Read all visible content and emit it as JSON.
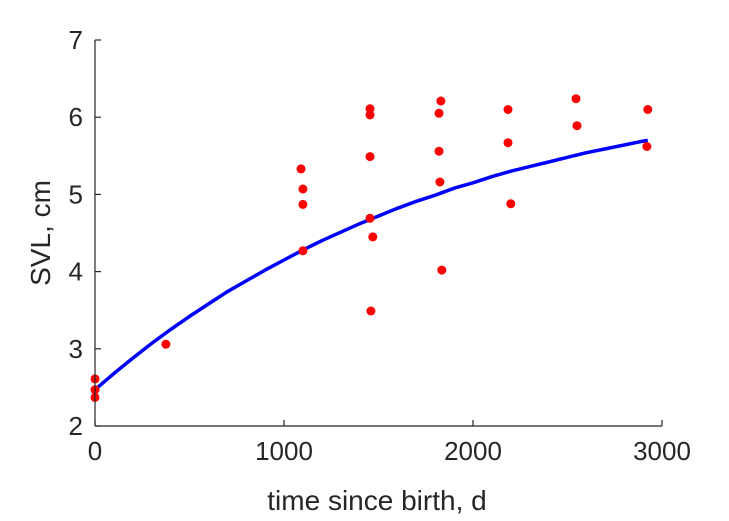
{
  "chart_data": {
    "type": "scatter",
    "title": "",
    "xlabel": "time since birth, d",
    "ylabel": "SVL, cm",
    "xlim": [
      0,
      3000
    ],
    "ylim": [
      2,
      7
    ],
    "xticks": [
      0,
      1000,
      2000,
      3000
    ],
    "xtick_labels": [
      "0",
      "1000",
      "2000",
      "3000"
    ],
    "yticks": [
      2,
      3,
      4,
      5,
      6,
      7
    ],
    "ytick_labels": [
      "2",
      "3",
      "4",
      "5",
      "6",
      "7"
    ],
    "grid": false,
    "series": [
      {
        "kind": "scatter",
        "color": "#ff0000",
        "points": [
          [
            0,
            2.61
          ],
          [
            0,
            2.47
          ],
          [
            0,
            2.37
          ],
          [
            375,
            3.06
          ],
          [
            1090,
            5.33
          ],
          [
            1100,
            5.07
          ],
          [
            1100,
            4.87
          ],
          [
            1100,
            4.27
          ],
          [
            1455,
            6.11
          ],
          [
            1455,
            6.03
          ],
          [
            1455,
            5.49
          ],
          [
            1455,
            4.69
          ],
          [
            1470,
            4.45
          ],
          [
            1460,
            3.49
          ],
          [
            1830,
            6.21
          ],
          [
            1820,
            6.05
          ],
          [
            1820,
            5.56
          ],
          [
            1825,
            5.16
          ],
          [
            1835,
            4.02
          ],
          [
            2185,
            6.1
          ],
          [
            2185,
            5.67
          ],
          [
            2200,
            4.88
          ],
          [
            2545,
            6.24
          ],
          [
            2550,
            5.89
          ],
          [
            2925,
            6.1
          ],
          [
            2920,
            5.62
          ]
        ]
      },
      {
        "kind": "line",
        "color": "#0000ff",
        "x": [
          0,
          100,
          200,
          300,
          400,
          500,
          600,
          700,
          800,
          900,
          1000,
          1100,
          1200,
          1300,
          1400,
          1500,
          1600,
          1700,
          1800,
          1900,
          2000,
          2100,
          2200,
          2300,
          2400,
          2500,
          2600,
          2700,
          2800,
          2900,
          2925
        ],
        "y": [
          2.47,
          2.68,
          2.88,
          3.07,
          3.25,
          3.42,
          3.58,
          3.74,
          3.88,
          4.02,
          4.15,
          4.28,
          4.4,
          4.51,
          4.62,
          4.72,
          4.82,
          4.91,
          4.99,
          5.08,
          5.15,
          5.23,
          5.3,
          5.36,
          5.42,
          5.48,
          5.54,
          5.59,
          5.64,
          5.69,
          5.7
        ]
      }
    ]
  }
}
